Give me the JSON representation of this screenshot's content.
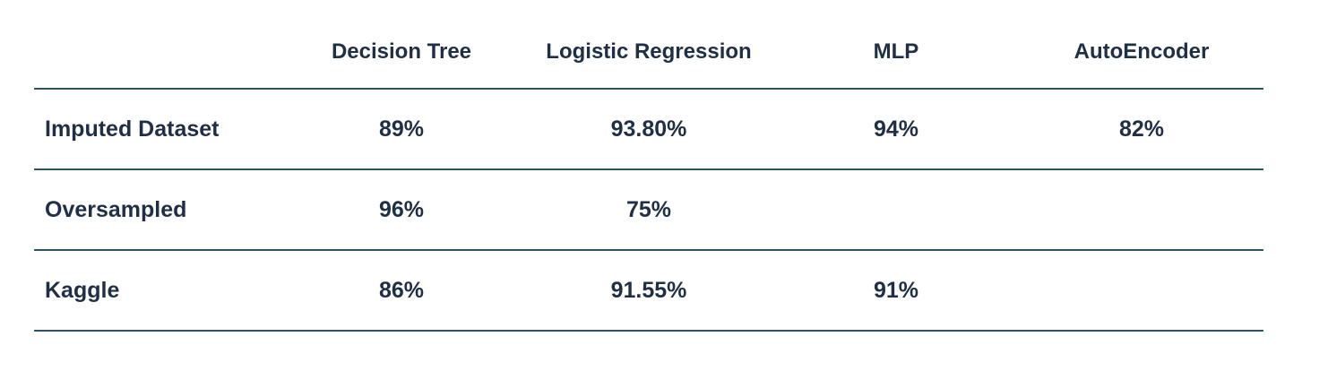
{
  "table": {
    "columns": [
      "",
      "Decision Tree",
      "Logistic Regression",
      "MLP",
      "AutoEncoder"
    ],
    "rows": [
      {
        "label": "Imputed Dataset",
        "cells": [
          "89%",
          "93.80%",
          "94%",
          "82%"
        ]
      },
      {
        "label": "Oversampled",
        "cells": [
          "96%",
          "75%",
          "",
          ""
        ]
      },
      {
        "label": "Kaggle",
        "cells": [
          "86%",
          "91.55%",
          "91%",
          ""
        ]
      }
    ]
  }
}
